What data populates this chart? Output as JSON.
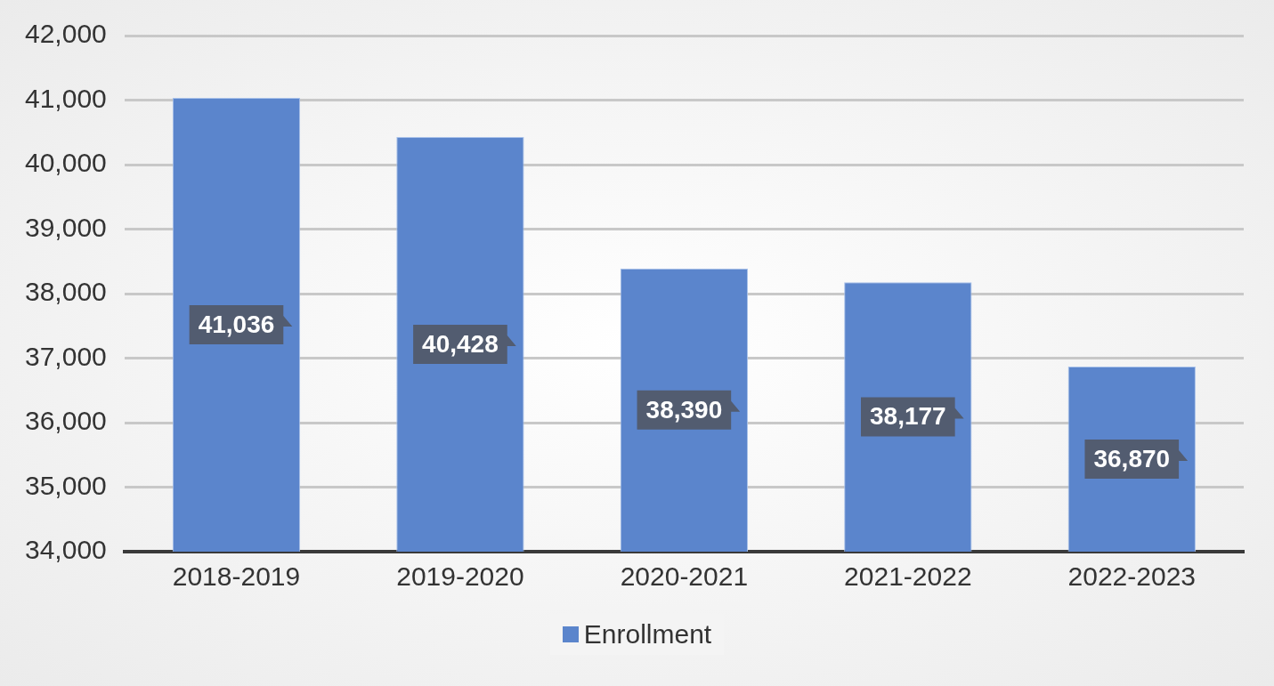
{
  "chart_data": {
    "type": "bar",
    "categories": [
      "2018-2019",
      "2019-2020",
      "2020-2021",
      "2021-2022",
      "2022-2023"
    ],
    "series": [
      {
        "name": "Enrollment",
        "color": "#5b85cc",
        "values": [
          41036,
          40428,
          38390,
          38177,
          36870
        ],
        "value_labels": [
          "41,036",
          "40,428",
          "38,390",
          "38,177",
          "36,870"
        ]
      }
    ],
    "ylim": [
      34000,
      42000
    ],
    "yticks": [
      {
        "value": 34000,
        "label": "34,000"
      },
      {
        "value": 35000,
        "label": "35,000"
      },
      {
        "value": 36000,
        "label": "36,000"
      },
      {
        "value": 37000,
        "label": "37,000"
      },
      {
        "value": 38000,
        "label": "38,000"
      },
      {
        "value": 39000,
        "label": "39,000"
      },
      {
        "value": 40000,
        "label": "40,000"
      },
      {
        "value": 41000,
        "label": "41,000"
      },
      {
        "value": 42000,
        "label": "42,000"
      }
    ],
    "grid": "y",
    "legend": "bottom"
  }
}
